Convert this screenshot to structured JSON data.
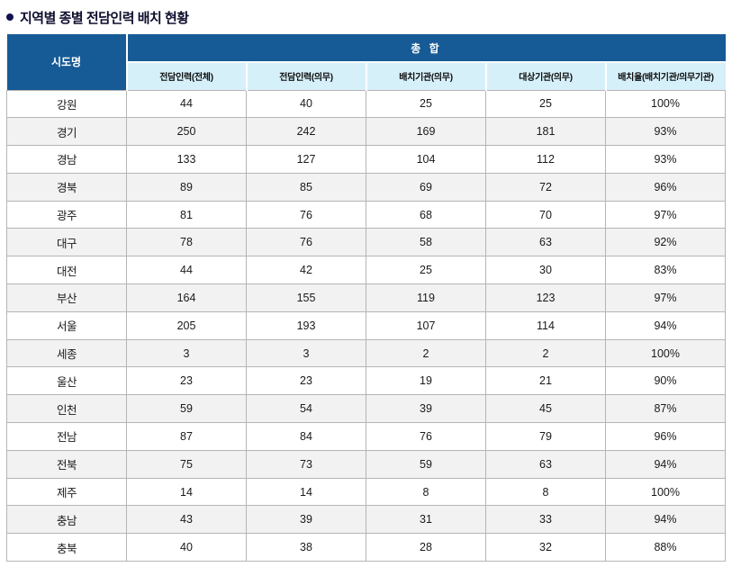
{
  "title": "지역별 종별 전담인력 배치 현황",
  "colors": {
    "header_bg": "#165a96",
    "subheader_bg": "#d6f0fa",
    "alt_row_bg": "#f2f2f2",
    "border": "#b5b5b5",
    "title_icon": "#10124e"
  },
  "table": {
    "corner_header": "시도명",
    "group_header": "총 합",
    "columns": [
      "전담인력(전체)",
      "전담인력(의무)",
      "배치기관(의무)",
      "대상기관(의무)",
      "배치율(배치기관/의무기관)"
    ],
    "rows": [
      {
        "region": "강원",
        "values": [
          "44",
          "40",
          "25",
          "25",
          "100%"
        ]
      },
      {
        "region": "경기",
        "values": [
          "250",
          "242",
          "169",
          "181",
          "93%"
        ]
      },
      {
        "region": "경남",
        "values": [
          "133",
          "127",
          "104",
          "112",
          "93%"
        ]
      },
      {
        "region": "경북",
        "values": [
          "89",
          "85",
          "69",
          "72",
          "96%"
        ]
      },
      {
        "region": "광주",
        "values": [
          "81",
          "76",
          "68",
          "70",
          "97%"
        ]
      },
      {
        "region": "대구",
        "values": [
          "78",
          "76",
          "58",
          "63",
          "92%"
        ]
      },
      {
        "region": "대전",
        "values": [
          "44",
          "42",
          "25",
          "30",
          "83%"
        ]
      },
      {
        "region": "부산",
        "values": [
          "164",
          "155",
          "119",
          "123",
          "97%"
        ]
      },
      {
        "region": "서울",
        "values": [
          "205",
          "193",
          "107",
          "114",
          "94%"
        ]
      },
      {
        "region": "세종",
        "values": [
          "3",
          "3",
          "2",
          "2",
          "100%"
        ]
      },
      {
        "region": "울산",
        "values": [
          "23",
          "23",
          "19",
          "21",
          "90%"
        ]
      },
      {
        "region": "인천",
        "values": [
          "59",
          "54",
          "39",
          "45",
          "87%"
        ]
      },
      {
        "region": "전남",
        "values": [
          "87",
          "84",
          "76",
          "79",
          "96%"
        ]
      },
      {
        "region": "전북",
        "values": [
          "75",
          "73",
          "59",
          "63",
          "94%"
        ]
      },
      {
        "region": "제주",
        "values": [
          "14",
          "14",
          "8",
          "8",
          "100%"
        ]
      },
      {
        "region": "충남",
        "values": [
          "43",
          "39",
          "31",
          "33",
          "94%"
        ]
      },
      {
        "region": "충북",
        "values": [
          "40",
          "38",
          "28",
          "32",
          "88%"
        ]
      }
    ]
  }
}
